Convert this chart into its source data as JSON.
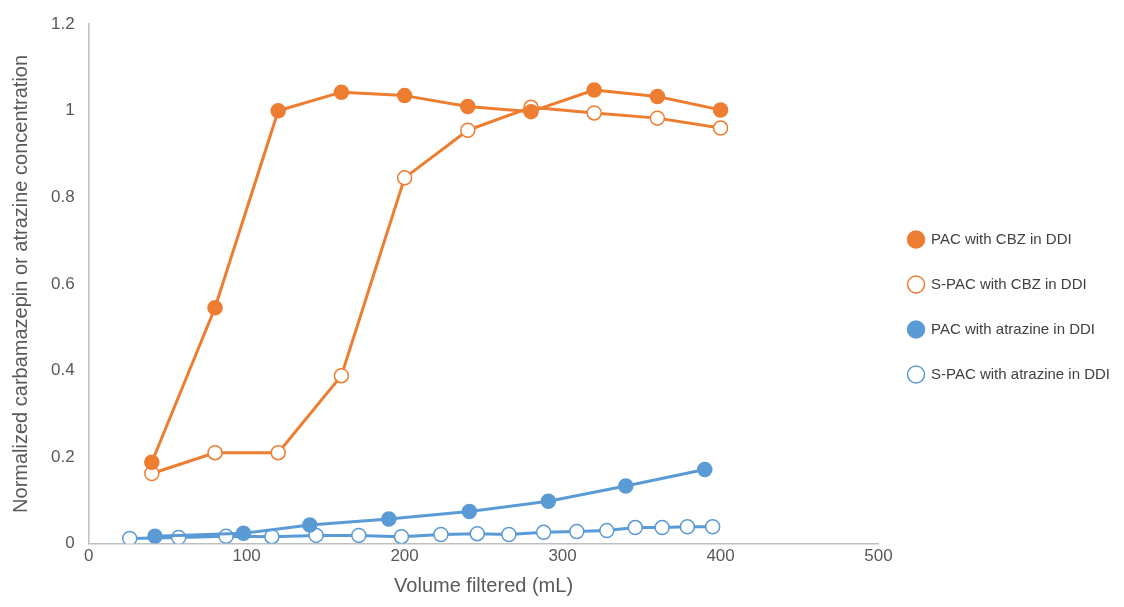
{
  "chart_data": {
    "type": "line",
    "xlabel": "Volume filtered (mL)",
    "ylabel": "Normalized carbamazepin or atrazine concentration",
    "xlim": [
      0,
      500
    ],
    "xticks": [
      0,
      100,
      200,
      300,
      400,
      500
    ],
    "ylim": [
      0,
      1.2
    ],
    "yticks": [
      0,
      0.2,
      0.4,
      0.6,
      0.8,
      1,
      1.2
    ],
    "grid": false,
    "legend": "right",
    "series": [
      {
        "name": "PAC with CBZ in DDI",
        "color": "#ed7d31",
        "marker": "circle",
        "x": [
          40,
          80,
          120,
          160,
          200,
          240,
          280,
          320,
          360,
          400
        ],
        "values": [
          0.188,
          0.545,
          1.0,
          1.043,
          1.035,
          1.01,
          0.998,
          1.048,
          1.033,
          1.002
        ]
      },
      {
        "name": "S-PAC with CBZ in DDI",
        "color": "#ed7d31",
        "marker": "open-circle",
        "x": [
          40,
          80,
          120,
          160,
          200,
          240,
          280,
          320,
          360,
          400
        ],
        "values": [
          0.162,
          0.21,
          0.21,
          0.388,
          0.845,
          0.955,
          1.008,
          0.995,
          0.983,
          0.96
        ]
      },
      {
        "name": "PAC with atrazine in DDI",
        "color": "#5b9bd5",
        "marker": "circle",
        "x": [
          42,
          98,
          140,
          190,
          241,
          291,
          340,
          390
        ],
        "values": [
          0.017,
          0.024,
          0.043,
          0.057,
          0.074,
          0.098,
          0.133,
          0.171
        ]
      },
      {
        "name": "S-PAC with atrazine in DDI",
        "color": "#5b9bd5",
        "marker": "open-circle",
        "x": [
          26,
          57,
          87,
          116,
          144,
          171,
          198,
          223,
          246,
          266,
          288,
          309,
          328,
          346,
          363,
          379,
          395
        ],
        "values": [
          0.012,
          0.014,
          0.017,
          0.016,
          0.019,
          0.019,
          0.016,
          0.021,
          0.023,
          0.021,
          0.026,
          0.028,
          0.03,
          0.037,
          0.037,
          0.039,
          0.039
        ]
      }
    ]
  }
}
